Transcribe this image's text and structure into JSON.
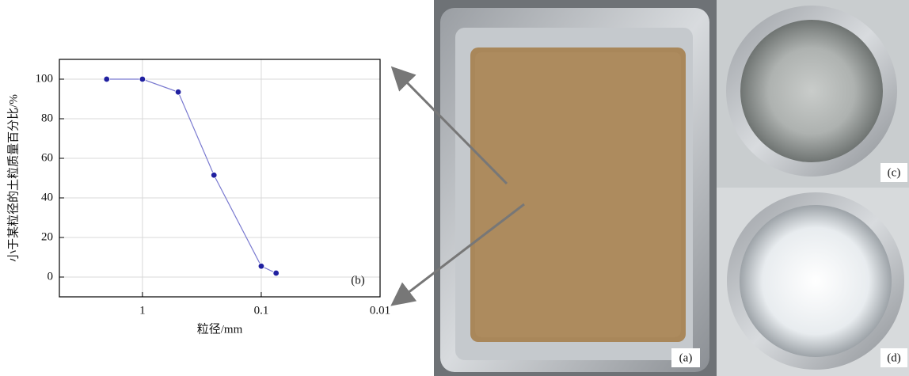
{
  "chart_data": {
    "type": "line",
    "x_label": "粒径/mm",
    "y_label": "小于某粒径的土粒质量百分比/%",
    "panel_label": "(b)",
    "x": [
      2,
      1,
      0.5,
      0.25,
      0.1,
      0.075
    ],
    "values": [
      100,
      100,
      93.5,
      51.5,
      5.5,
      2
    ],
    "xscale": "log",
    "xlim": [
      5,
      0.01
    ],
    "xticks": [
      1,
      0.1,
      0.01
    ],
    "ylim": [
      -10,
      110
    ],
    "yticks": [
      0,
      20,
      40,
      60,
      80,
      100
    ],
    "grid": true,
    "color": "#2020a0",
    "line_color": "#7a7ad0"
  },
  "photos": {
    "a": "(a)",
    "c": "(c)",
    "d": "(d)"
  }
}
